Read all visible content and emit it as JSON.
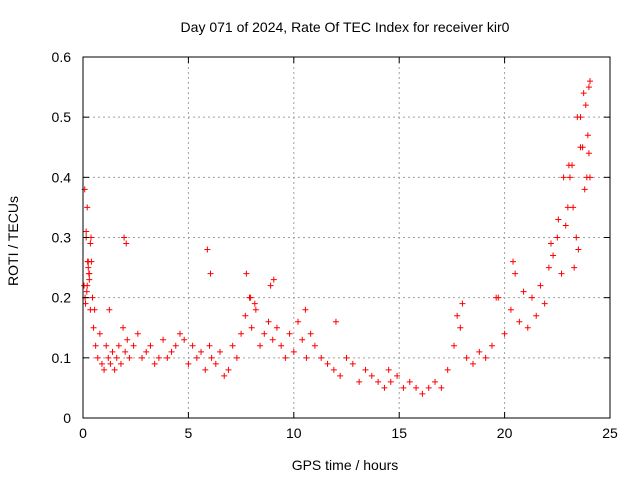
{
  "chart_data": {
    "type": "scatter",
    "title": "Day 071 of 2024, Rate Of TEC Index for receiver kir0",
    "xlabel": "GPS time / hours",
    "ylabel": "ROTI / TECUs",
    "xlim": [
      0,
      25
    ],
    "ylim": [
      0,
      0.6
    ],
    "x_ticks": [
      0,
      5,
      10,
      15,
      20,
      25
    ],
    "x_tick_labels": [
      "0",
      "5",
      "10",
      "15",
      "20",
      "25"
    ],
    "y_ticks": [
      0,
      0.1,
      0.2,
      0.3,
      0.4,
      0.5,
      0.6
    ],
    "y_tick_labels": [
      "0",
      "0.1",
      "0.2",
      "0.3",
      "0.4",
      "0.5",
      "0.6"
    ],
    "grid": true,
    "marker": "+",
    "color": "#ff0000",
    "series": [
      {
        "name": "ROTI",
        "x": [
          0.05,
          0.1,
          0.15,
          0.2,
          0.25,
          0.3,
          0.35,
          0.4,
          0.45,
          0.5,
          0.55,
          0.6,
          0.7,
          0.8,
          0.9,
          1.0,
          1.1,
          1.2,
          1.3,
          1.4,
          1.5,
          1.6,
          1.7,
          1.8,
          1.9,
          2.0,
          2.1,
          2.2,
          2.4,
          2.6,
          2.8,
          3.0,
          3.2,
          3.4,
          3.6,
          3.8,
          4.0,
          4.2,
          4.4,
          4.6,
          4.8,
          5.0,
          5.2,
          5.4,
          5.6,
          5.8,
          6.0,
          6.1,
          6.3,
          6.5,
          6.7,
          6.9,
          7.1,
          7.3,
          7.5,
          7.7,
          7.9,
          8.0,
          8.2,
          8.4,
          8.6,
          8.8,
          9.0,
          9.2,
          9.4,
          9.6,
          9.8,
          10.0,
          10.2,
          10.4,
          10.6,
          10.8,
          11.0,
          11.3,
          11.6,
          11.9,
          12.2,
          12.5,
          12.8,
          13.1,
          13.4,
          13.7,
          14.0,
          14.3,
          14.6,
          14.9,
          15.2,
          15.5,
          15.8,
          16.1,
          16.4,
          16.7,
          17.0,
          17.3,
          17.6,
          17.9,
          18.2,
          18.5,
          18.8,
          19.1,
          19.4,
          19.7,
          20.0,
          20.3,
          20.5,
          20.7,
          20.9,
          21.1,
          21.3,
          21.5,
          21.7,
          21.9,
          22.1,
          22.3,
          22.5,
          22.7,
          22.9,
          23.0,
          23.1,
          23.2,
          23.3,
          23.4,
          23.5,
          23.6,
          23.7,
          23.8,
          23.9,
          24.0,
          24.05,
          0.08,
          0.15,
          0.22,
          0.3,
          0.35,
          0.38,
          0.28,
          0.2,
          0.12,
          0.25,
          0.18,
          1.95,
          2.05,
          1.25,
          5.9,
          6.05,
          7.75,
          7.95,
          8.15,
          8.9,
          9.05,
          10.55,
          12.0,
          14.5,
          17.75,
          18.0,
          19.6,
          20.4,
          22.2,
          22.55,
          22.8,
          23.05,
          23.25,
          23.45,
          23.6,
          23.75,
          23.85,
          23.95,
          24.0,
          24.05
        ],
        "y": [
          0.22,
          0.2,
          0.31,
          0.35,
          0.25,
          0.24,
          0.18,
          0.26,
          0.2,
          0.15,
          0.18,
          0.12,
          0.1,
          0.14,
          0.09,
          0.08,
          0.12,
          0.1,
          0.09,
          0.11,
          0.08,
          0.1,
          0.12,
          0.09,
          0.15,
          0.11,
          0.13,
          0.1,
          0.12,
          0.14,
          0.1,
          0.11,
          0.12,
          0.09,
          0.1,
          0.13,
          0.1,
          0.11,
          0.12,
          0.14,
          0.13,
          0.09,
          0.12,
          0.1,
          0.11,
          0.08,
          0.12,
          0.1,
          0.09,
          0.11,
          0.07,
          0.08,
          0.12,
          0.1,
          0.14,
          0.17,
          0.2,
          0.15,
          0.18,
          0.12,
          0.14,
          0.16,
          0.13,
          0.15,
          0.12,
          0.1,
          0.14,
          0.11,
          0.16,
          0.13,
          0.1,
          0.14,
          0.12,
          0.1,
          0.09,
          0.08,
          0.07,
          0.1,
          0.09,
          0.06,
          0.08,
          0.07,
          0.06,
          0.05,
          0.06,
          0.07,
          0.05,
          0.06,
          0.05,
          0.04,
          0.05,
          0.06,
          0.05,
          0.08,
          0.12,
          0.15,
          0.1,
          0.09,
          0.11,
          0.1,
          0.12,
          0.2,
          0.14,
          0.18,
          0.24,
          0.16,
          0.21,
          0.15,
          0.2,
          0.17,
          0.22,
          0.19,
          0.25,
          0.27,
          0.3,
          0.24,
          0.32,
          0.35,
          0.4,
          0.42,
          0.25,
          0.3,
          0.28,
          0.5,
          0.45,
          0.38,
          0.4,
          0.55,
          0.56,
          0.38,
          0.3,
          0.26,
          0.23,
          0.29,
          0.3,
          0.24,
          0.22,
          0.19,
          0.26,
          0.21,
          0.3,
          0.29,
          0.18,
          0.28,
          0.24,
          0.24,
          0.2,
          0.19,
          0.22,
          0.23,
          0.18,
          0.16,
          0.08,
          0.17,
          0.19,
          0.2,
          0.26,
          0.29,
          0.33,
          0.4,
          0.42,
          0.35,
          0.5,
          0.45,
          0.54,
          0.52,
          0.47,
          0.44,
          0.4
        ]
      }
    ]
  }
}
